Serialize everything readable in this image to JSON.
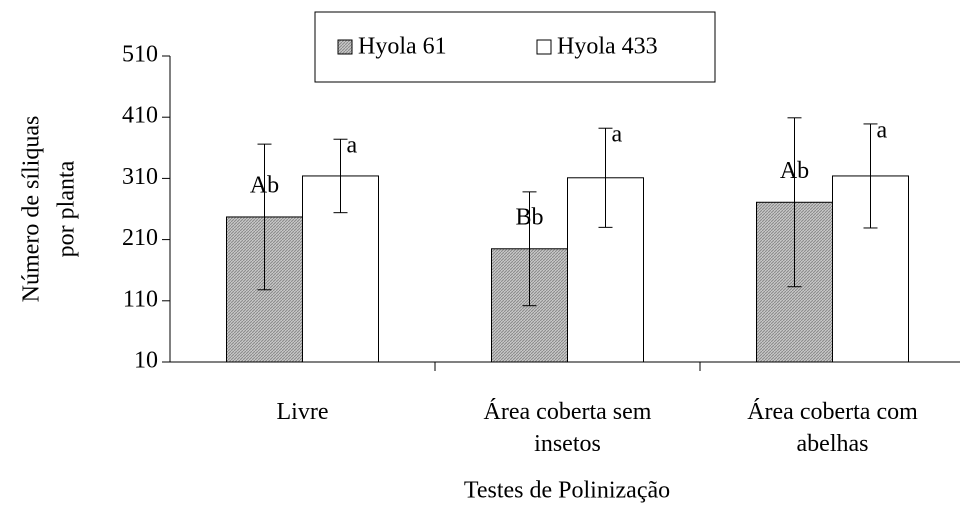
{
  "chart_data": {
    "type": "bar",
    "categories": [
      "Livre",
      "Área coberta sem insetos",
      "Área coberta com abelhas"
    ],
    "series": [
      {
        "name": "Hyola 61",
        "color": "#b8b8b8",
        "values": [
          247,
          195,
          271
        ],
        "errors": [
          119,
          93,
          138
        ],
        "labels": [
          "Ab",
          "Bb",
          "Ab"
        ]
      },
      {
        "name": "Hyola 433",
        "color": "#ffffff",
        "values": [
          314,
          311,
          314
        ],
        "errors": [
          60,
          81,
          85
        ],
        "labels": [
          "a",
          "a",
          "a"
        ]
      }
    ],
    "ylim": [
      10,
      510
    ],
    "yticks": [
      10,
      110,
      210,
      310,
      410,
      510
    ],
    "ylabel": [
      "Número de síliquas",
      "por planta"
    ],
    "xlabel": "Testes de Polinização",
    "legend": "top"
  }
}
